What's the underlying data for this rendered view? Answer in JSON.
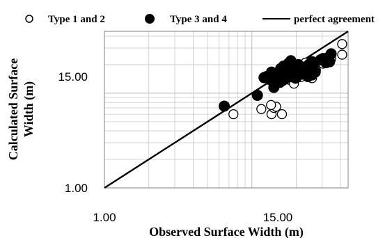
{
  "chart_data": {
    "type": "scatter",
    "title": "",
    "xlabel": "Observed Surface Width (m)",
    "ylabel": "Calculated Surface Width (m)",
    "ylabel_lines": [
      "Calculated Surface",
      "Width (m)"
    ],
    "scale": "log",
    "xlim": [
      1.0,
      45.0
    ],
    "ylim": [
      1.0,
      45.0
    ],
    "x_ticks": [
      1.0,
      15.0
    ],
    "y_ticks": [
      1.0,
      15.0
    ],
    "x_tick_labels": [
      "1.00",
      "15.00"
    ],
    "y_tick_labels": [
      "1.00",
      "15.00"
    ],
    "grid": true,
    "legend_position": "top",
    "series": [
      {
        "name": "Type 1 and 2",
        "marker": "open-circle",
        "color": "#000000",
        "points": [
          [
            7.5,
            6.0
          ],
          [
            11.6,
            6.8
          ],
          [
            13.6,
            6.0
          ],
          [
            14.1,
            7.0
          ],
          [
            14.6,
            7.2
          ],
          [
            16.0,
            6.0
          ],
          [
            13.5,
            7.5
          ],
          [
            15.0,
            14.0
          ],
          [
            16.3,
            13.5
          ],
          [
            17.0,
            15.0
          ],
          [
            18.0,
            13.8
          ],
          [
            19.3,
            12.6
          ],
          [
            19.8,
            14.2
          ],
          [
            20.7,
            15.2
          ],
          [
            21.5,
            14.8
          ],
          [
            22.5,
            16.4
          ],
          [
            24.1,
            16.0
          ],
          [
            25.6,
            14.4
          ],
          [
            18.5,
            16.5
          ],
          [
            21.2,
            19.5
          ],
          [
            23.1,
            21.0
          ],
          [
            27.2,
            17.5
          ],
          [
            30.4,
            20.5
          ],
          [
            34.5,
            23.0
          ],
          [
            41.0,
            25.5
          ],
          [
            41.0,
            33.0
          ],
          [
            17.2,
            18.0
          ],
          [
            19.5,
            17.8
          ],
          [
            22.8,
            18.5
          ],
          [
            25.0,
            19.0
          ],
          [
            15.7,
            15.5
          ]
        ]
      },
      {
        "name": "Type 3 and 4",
        "marker": "filled-circle",
        "color": "#000000",
        "points": [
          [
            6.5,
            7.3
          ],
          [
            10.9,
            9.5
          ],
          [
            12.1,
            14.6
          ],
          [
            12.6,
            15.0
          ],
          [
            13.6,
            16.7
          ],
          [
            13.3,
            13.9
          ],
          [
            14.2,
            15.2
          ],
          [
            15.0,
            15.8
          ],
          [
            15.7,
            18.2
          ],
          [
            16.4,
            19.3
          ],
          [
            16.9,
            14.2
          ],
          [
            17.2,
            17.0
          ],
          [
            17.7,
            20.6
          ],
          [
            18.4,
            22.0
          ],
          [
            18.7,
            14.9
          ],
          [
            19.7,
            17.5
          ],
          [
            20.7,
            20.0
          ],
          [
            21.3,
            18.2
          ],
          [
            22.0,
            15.9
          ],
          [
            23.4,
            19.1
          ],
          [
            24.5,
            20.2
          ],
          [
            25.6,
            21.5
          ],
          [
            26.3,
            20.0
          ],
          [
            25.6,
            15.6
          ],
          [
            26.9,
            16.7
          ],
          [
            29.2,
            22.5
          ],
          [
            30.4,
            23.2
          ],
          [
            31.8,
            21.0
          ],
          [
            32.6,
            23.6
          ],
          [
            33.7,
            21.5
          ],
          [
            34.5,
            26.0
          ],
          [
            14.1,
            11.5
          ],
          [
            16.2,
            16.0
          ],
          [
            19.0,
            16.0
          ],
          [
            20.0,
            14.6
          ],
          [
            21.7,
            17.0
          ],
          [
            23.0,
            17.5
          ],
          [
            24.0,
            15.0
          ],
          [
            15.5,
            13.0
          ],
          [
            18.0,
            18.5
          ]
        ]
      },
      {
        "name": "perfect agreement",
        "marker": "line",
        "color": "#000000",
        "points": [
          [
            1.0,
            1.0
          ],
          [
            45.0,
            45.0
          ]
        ]
      }
    ]
  }
}
